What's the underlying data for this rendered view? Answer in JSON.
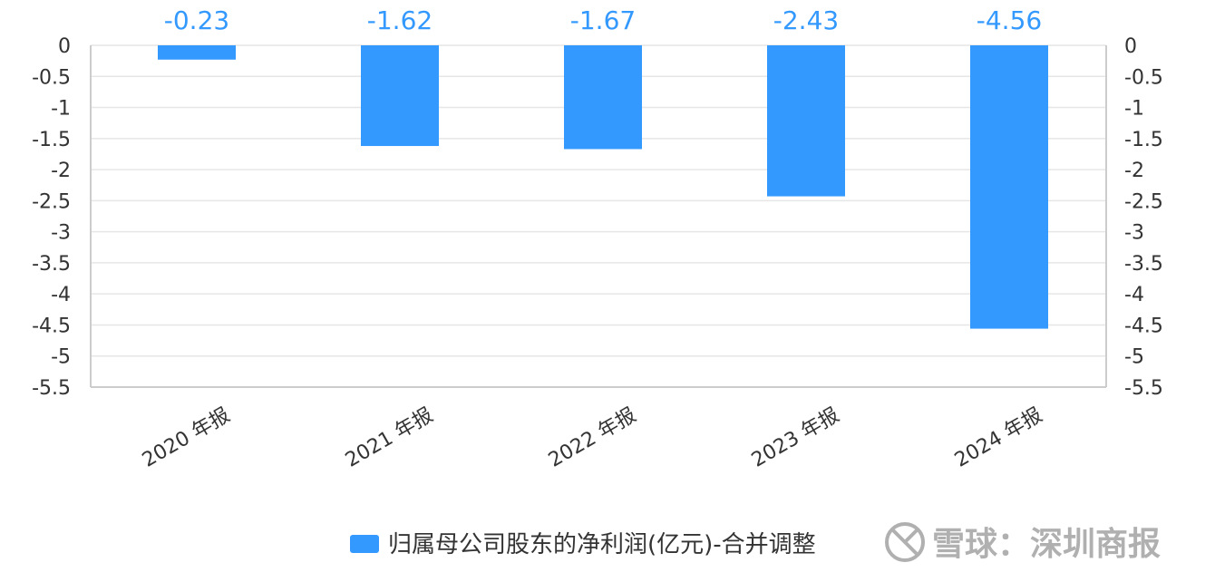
{
  "chart_data": {
    "type": "bar",
    "categories": [
      "2020 年报",
      "2021 年报",
      "2022 年报",
      "2023 年报",
      "2024 年报"
    ],
    "series": [
      {
        "name": "归属母公司股东的净利润(亿元)-合并调整",
        "values": [
          -0.23,
          -1.62,
          -1.67,
          -2.43,
          -4.56
        ],
        "color": "#3399ff"
      }
    ],
    "data_labels": [
      "-0.23",
      "-1.62",
      "-1.67",
      "-2.43",
      "-4.56"
    ],
    "ylim": [
      -5.5,
      0
    ],
    "yticks": [
      "0",
      "-0.5",
      "-1",
      "-1.5",
      "-2",
      "-2.5",
      "-3",
      "-3.5",
      "-4",
      "-4.5",
      "-5",
      "-5.5"
    ],
    "ytick_values": [
      0,
      -0.5,
      -1,
      -1.5,
      -2,
      -2.5,
      -3,
      -3.5,
      -4,
      -4.5,
      -5,
      -5.5
    ],
    "dual_y_axis": true,
    "grid": true,
    "legend_position": "bottom"
  },
  "watermark": {
    "text": "雪球：深圳商报",
    "icon": "xueqiu-logo-icon"
  },
  "colors": {
    "bar": "#3399ff",
    "grid": "#e6e6e6",
    "axis": "#cccccc",
    "text": "#333333",
    "watermark": "#b0b0b0"
  }
}
